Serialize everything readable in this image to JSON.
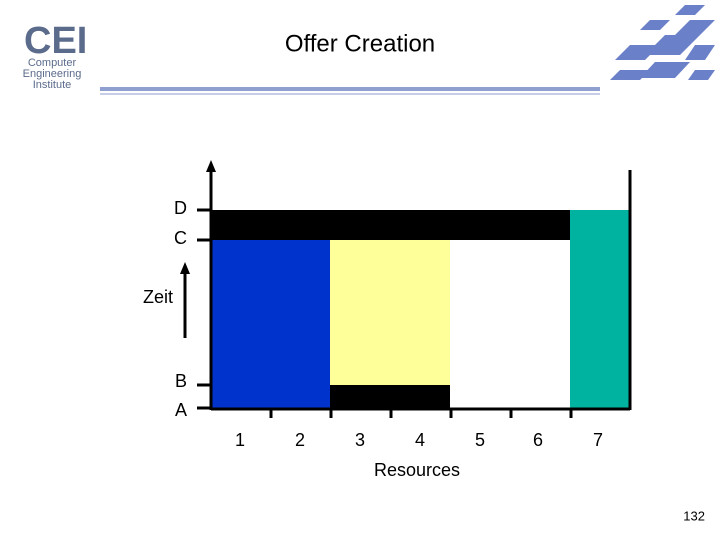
{
  "header": {
    "title": "Offer Creation",
    "logo": {
      "mark": "CEI",
      "lines": [
        "Computer",
        "Engineering",
        "Institute"
      ]
    }
  },
  "diagram": {
    "time_labels": [
      "D",
      "C",
      "Zeit",
      "B",
      "A"
    ],
    "resource_labels": [
      "1",
      "2",
      "3",
      "4",
      "5",
      "6",
      "7"
    ],
    "x_axis_label": "Resources"
  },
  "footer": {
    "page_number": "132"
  }
}
